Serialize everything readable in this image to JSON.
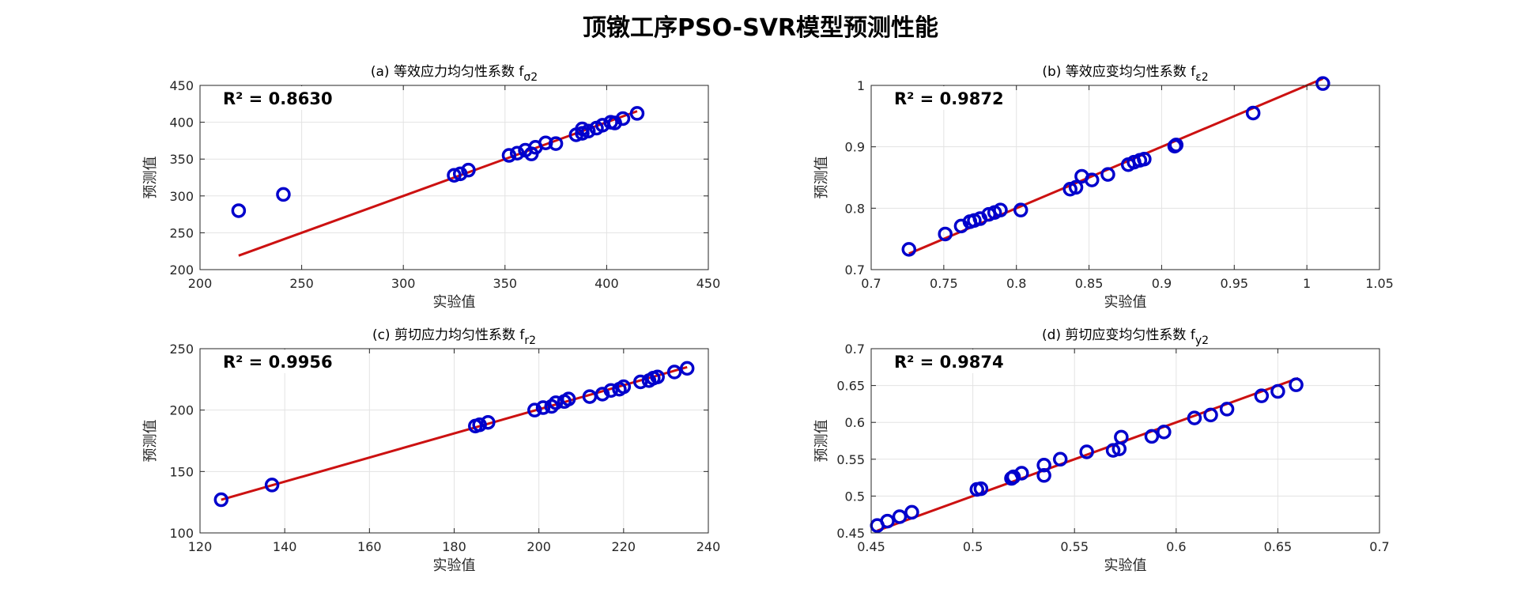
{
  "figure": {
    "title": "顶镦工序PSO-SVR模型预测性能"
  },
  "chart_data": [
    {
      "type": "scatter",
      "title": "(a) 等效应力均匀性系数 f",
      "title_sub": "σ2",
      "xlabel": "实验值",
      "ylabel": "预测值",
      "annotation": "R² = 0.8630",
      "xlim": [
        200,
        450
      ],
      "ylim": [
        200,
        450
      ],
      "xticks": [
        200,
        250,
        300,
        350,
        400,
        450
      ],
      "yticks": [
        200,
        250,
        300,
        350,
        400,
        450
      ],
      "grid": true,
      "points": [
        [
          219,
          280
        ],
        [
          241,
          302
        ],
        [
          325,
          328
        ],
        [
          328,
          330
        ],
        [
          332,
          335
        ],
        [
          352,
          355
        ],
        [
          356,
          358
        ],
        [
          360,
          362
        ],
        [
          363,
          357
        ],
        [
          365,
          366
        ],
        [
          370,
          372
        ],
        [
          375,
          371
        ],
        [
          385,
          383
        ],
        [
          388,
          385
        ],
        [
          388,
          391
        ],
        [
          391,
          388
        ],
        [
          395,
          392
        ],
        [
          398,
          396
        ],
        [
          402,
          400
        ],
        [
          404,
          399
        ],
        [
          408,
          405
        ],
        [
          415,
          412
        ]
      ],
      "fit_line": [
        [
          219,
          219
        ],
        [
          415,
          415
        ]
      ],
      "colors": {
        "marker": "#0000cc",
        "line": "#cc1111"
      }
    },
    {
      "type": "scatter",
      "title": "(b) 等效应变均匀性系数 f",
      "title_sub": "ε2",
      "xlabel": "实验值",
      "ylabel": "预测值",
      "annotation": "R² = 0.9872",
      "xlim": [
        0.7,
        1.05
      ],
      "ylim": [
        0.7,
        1.0
      ],
      "xticks": [
        0.7,
        0.75,
        0.8,
        0.85,
        0.9,
        0.95,
        1,
        1.05
      ],
      "yticks": [
        0.7,
        0.8,
        0.9,
        1
      ],
      "grid": true,
      "points": [
        [
          0.726,
          0.733
        ],
        [
          0.751,
          0.758
        ],
        [
          0.762,
          0.771
        ],
        [
          0.768,
          0.778
        ],
        [
          0.771,
          0.78
        ],
        [
          0.775,
          0.783
        ],
        [
          0.781,
          0.79
        ],
        [
          0.785,
          0.793
        ],
        [
          0.789,
          0.797
        ],
        [
          0.803,
          0.797
        ],
        [
          0.837,
          0.831
        ],
        [
          0.841,
          0.834
        ],
        [
          0.845,
          0.852
        ],
        [
          0.852,
          0.846
        ],
        [
          0.863,
          0.855
        ],
        [
          0.877,
          0.871
        ],
        [
          0.881,
          0.875
        ],
        [
          0.885,
          0.878
        ],
        [
          0.888,
          0.88
        ],
        [
          0.909,
          0.901
        ],
        [
          0.91,
          0.903
        ],
        [
          0.963,
          0.955
        ],
        [
          1.011,
          1.003
        ]
      ],
      "fit_line": [
        [
          0.726,
          0.726
        ],
        [
          1.011,
          1.011
        ]
      ],
      "colors": {
        "marker": "#0000cc",
        "line": "#cc1111"
      }
    },
    {
      "type": "scatter",
      "title": "(c) 剪切应力均匀性系数 f",
      "title_sub": "r2",
      "xlabel": "实验值",
      "ylabel": "预测值",
      "annotation": "R² = 0.9956",
      "xlim": [
        120,
        240
      ],
      "ylim": [
        100,
        250
      ],
      "xticks": [
        120,
        140,
        160,
        180,
        200,
        220,
        240
      ],
      "yticks": [
        100,
        150,
        200,
        250
      ],
      "grid": true,
      "points": [
        [
          125,
          127
        ],
        [
          137,
          139
        ],
        [
          185,
          187
        ],
        [
          186,
          188
        ],
        [
          188,
          190
        ],
        [
          199,
          200
        ],
        [
          201,
          202
        ],
        [
          203,
          203
        ],
        [
          204,
          206
        ],
        [
          206,
          207
        ],
        [
          207,
          209
        ],
        [
          212,
          211
        ],
        [
          215,
          213
        ],
        [
          217,
          216
        ],
        [
          219,
          217
        ],
        [
          220,
          219
        ],
        [
          224,
          223
        ],
        [
          226,
          224
        ],
        [
          227,
          226
        ],
        [
          228,
          227
        ],
        [
          232,
          231
        ],
        [
          235,
          234
        ]
      ],
      "fit_line": [
        [
          125,
          127
        ],
        [
          235,
          235
        ]
      ],
      "colors": {
        "marker": "#0000cc",
        "line": "#cc1111"
      }
    },
    {
      "type": "scatter",
      "title": "(d) 剪切应变均匀性系数 f",
      "title_sub": "y2",
      "xlabel": "实验值",
      "ylabel": "预测值",
      "annotation": "R² = 0.9874",
      "xlim": [
        0.45,
        0.7
      ],
      "ylim": [
        0.45,
        0.7
      ],
      "xticks": [
        0.45,
        0.5,
        0.55,
        0.6,
        0.65,
        0.7
      ],
      "yticks": [
        0.45,
        0.5,
        0.55,
        0.6,
        0.65,
        0.7
      ],
      "grid": true,
      "points": [
        [
          0.453,
          0.46
        ],
        [
          0.458,
          0.466
        ],
        [
          0.464,
          0.472
        ],
        [
          0.47,
          0.478
        ],
        [
          0.502,
          0.509
        ],
        [
          0.504,
          0.51
        ],
        [
          0.519,
          0.524
        ],
        [
          0.52,
          0.526
        ],
        [
          0.524,
          0.531
        ],
        [
          0.535,
          0.528
        ],
        [
          0.535,
          0.542
        ],
        [
          0.543,
          0.55
        ],
        [
          0.556,
          0.56
        ],
        [
          0.569,
          0.562
        ],
        [
          0.572,
          0.564
        ],
        [
          0.573,
          0.58
        ],
        [
          0.588,
          0.581
        ],
        [
          0.594,
          0.587
        ],
        [
          0.609,
          0.606
        ],
        [
          0.617,
          0.61
        ],
        [
          0.625,
          0.618
        ],
        [
          0.642,
          0.636
        ],
        [
          0.65,
          0.642
        ],
        [
          0.659,
          0.651
        ]
      ],
      "fit_line": [
        [
          0.453,
          0.453
        ],
        [
          0.66,
          0.66
        ]
      ],
      "colors": {
        "marker": "#0000cc",
        "line": "#cc1111"
      }
    }
  ]
}
